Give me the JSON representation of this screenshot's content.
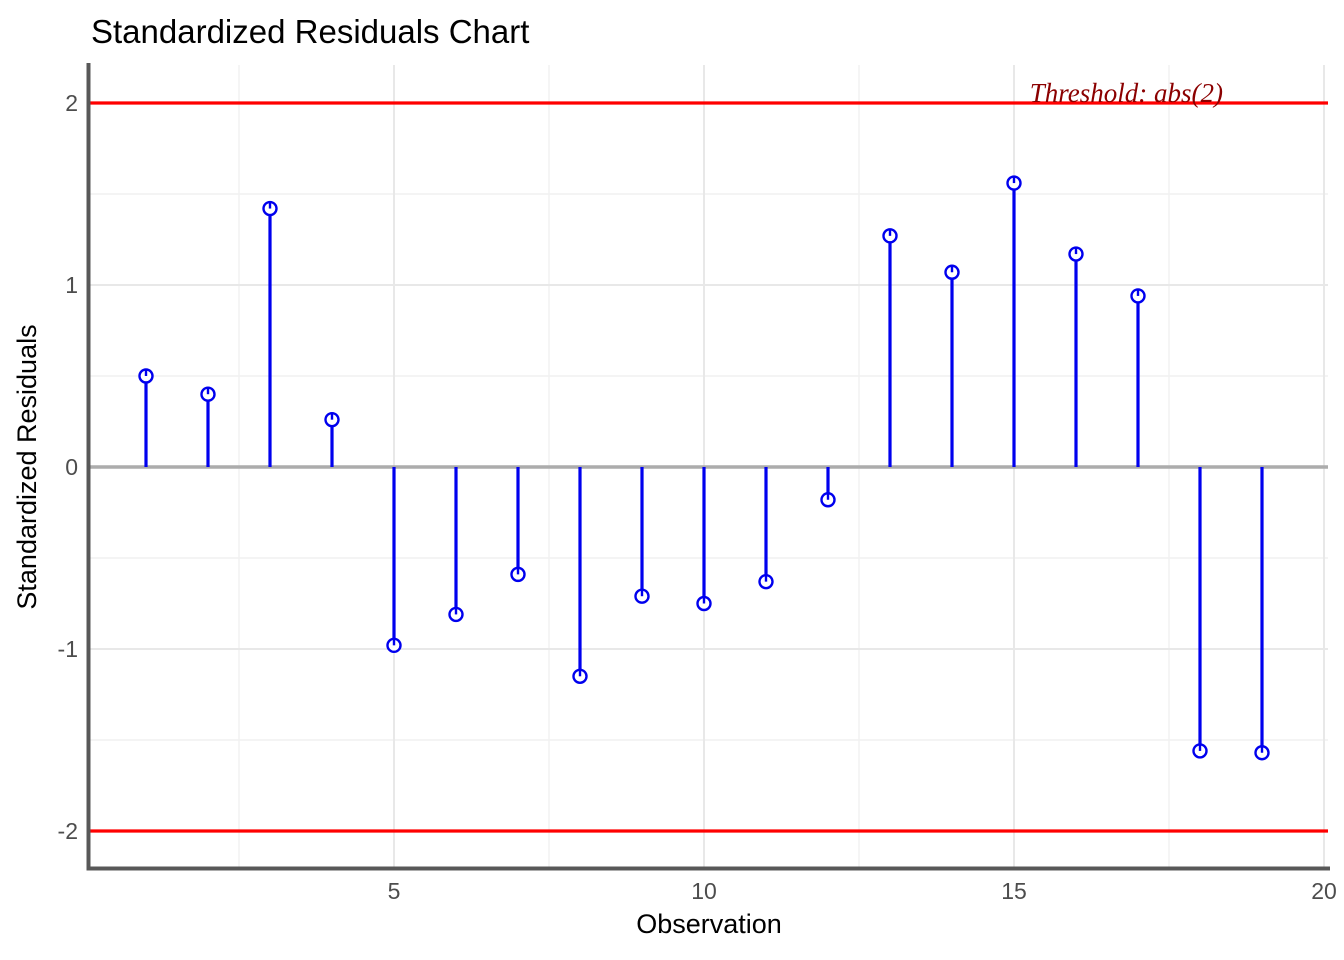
{
  "title": "Standardized Residuals Chart",
  "chart_data": {
    "type": "stem",
    "title": "Standardized Residuals Chart",
    "xlabel": "Observation",
    "ylabel": "Standardized Residuals",
    "x": [
      1,
      2,
      3,
      4,
      5,
      6,
      7,
      8,
      9,
      10,
      11,
      12,
      13,
      14,
      15,
      16,
      17,
      18,
      19
    ],
    "values": [
      0.5,
      0.4,
      1.42,
      0.26,
      -0.98,
      -0.81,
      -0.59,
      -1.15,
      -0.71,
      -0.75,
      -0.63,
      -0.18,
      1.27,
      1.07,
      1.56,
      1.17,
      0.94,
      -1.56,
      -1.57
    ],
    "baseline": 0,
    "thresholds": [
      2,
      -2
    ],
    "threshold_label": "Threshold: abs(2)",
    "x_ticks": [
      5,
      10,
      15,
      20
    ],
    "y_ticks": [
      2,
      1,
      0,
      -1,
      -2
    ],
    "x_minor_ticks": [
      2.5,
      7.5,
      12.5,
      17.5
    ],
    "y_minor_ticks": [
      1.5,
      0.5,
      -0.5,
      -1.5
    ],
    "xlim": [
      0.1,
      20.06
    ],
    "ylim": [
      -2.2,
      2.21
    ],
    "grid": true,
    "legend": "none",
    "marker": "open-circle",
    "colors": {
      "stem": "#0000EE",
      "threshold_line": "#FF0000",
      "annotation_text": "#8B0000",
      "zero_line": "#ACACAC",
      "axis_line": "#585858",
      "grid_major": "#E8E8E8",
      "grid_minor": "#F1F1F1",
      "tick_text": "#4D4D4D",
      "background": "#FFFFFF"
    }
  }
}
